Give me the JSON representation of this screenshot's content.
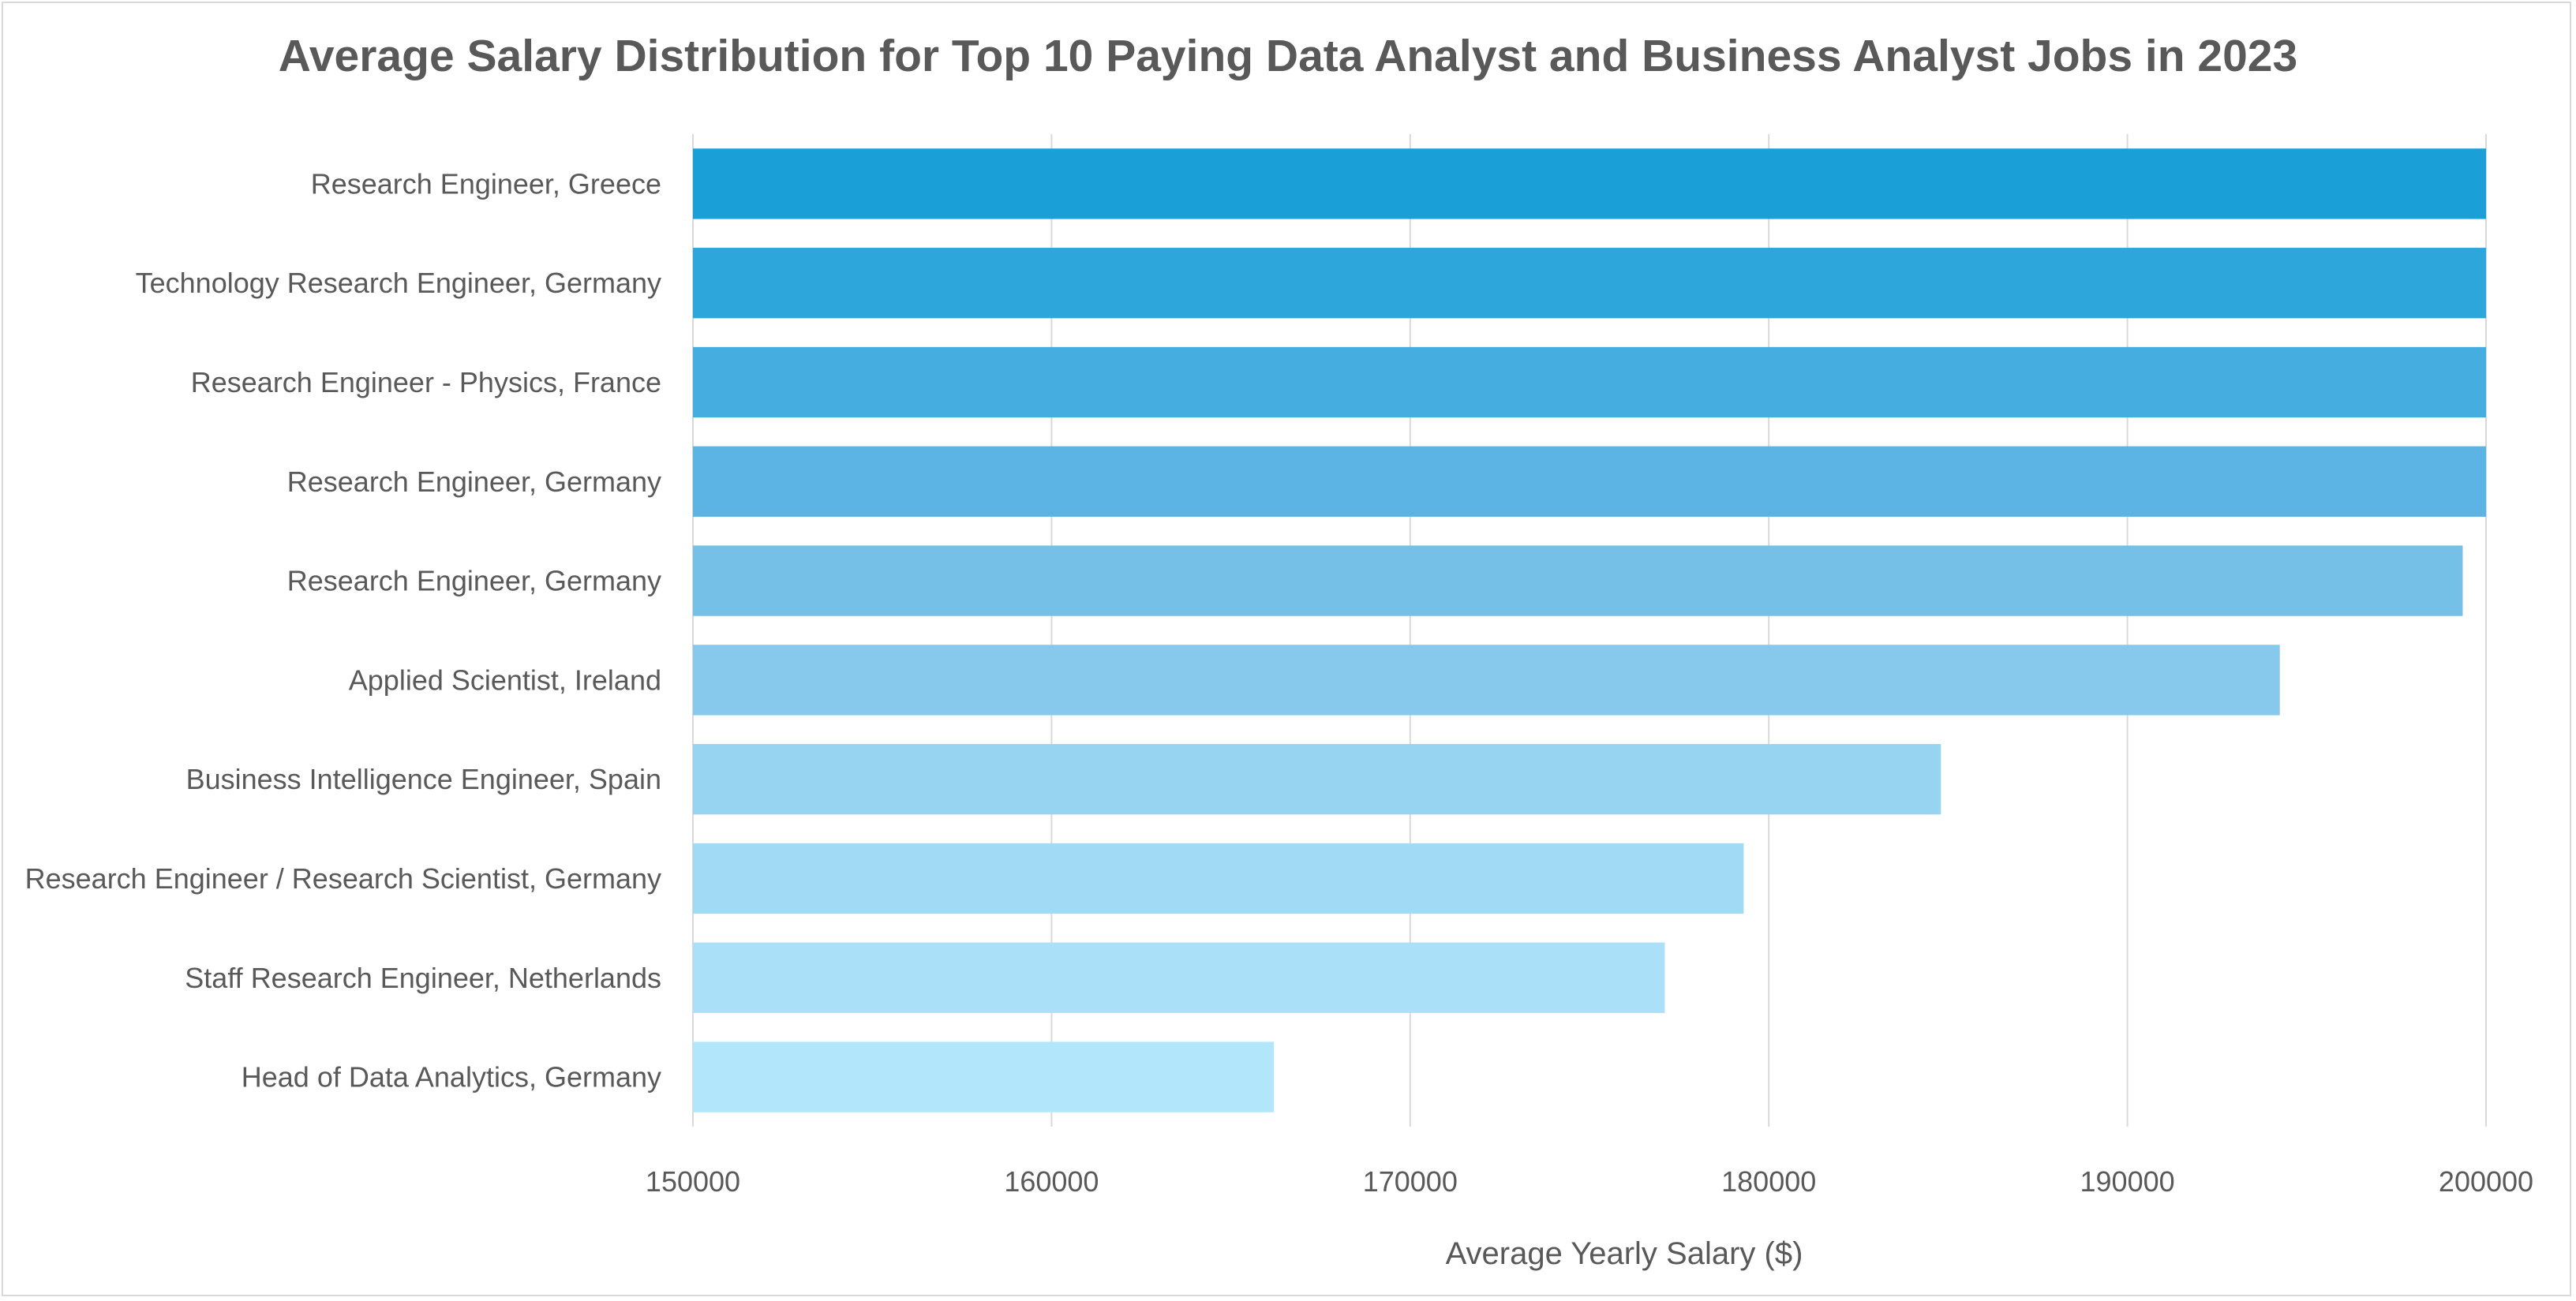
{
  "chart_data": {
    "type": "bar",
    "orientation": "horizontal",
    "title": "Average Salary Distribution for Top 10 Paying Data Analyst and Business Analyst Jobs in 2023",
    "xlabel": "Average Yearly Salary ($)",
    "ylabel": "",
    "xlim": [
      150000,
      200000
    ],
    "x_ticks": [
      "150000",
      "160000",
      "170000",
      "180000",
      "190000",
      "200000"
    ],
    "grid": "vertical",
    "legend": "none",
    "categories": [
      "Research Engineer, Greece",
      "Technology Research Engineer, Germany",
      "Research Engineer - Physics, France",
      "Research Engineer, Germany",
      "Research Engineer, Germany",
      "Applied Scientist, Ireland",
      "Business Intelligence Engineer, Spain",
      "Research Engineer / Research Scientist, Germany",
      "Staff Research Engineer, Netherlands",
      "Head of Data Analytics, Germany"
    ],
    "values": [
      200000,
      200000,
      200000,
      200000,
      199350,
      194250,
      184800,
      179300,
      177100,
      166200
    ],
    "colors": [
      "#1a9fd7",
      "#2da6db",
      "#45addf",
      "#5bb4e3",
      "#74c0e7",
      "#86c9ec",
      "#97d4f1",
      "#a1daf5",
      "#aae1f8",
      "#b1e6fb"
    ]
  }
}
